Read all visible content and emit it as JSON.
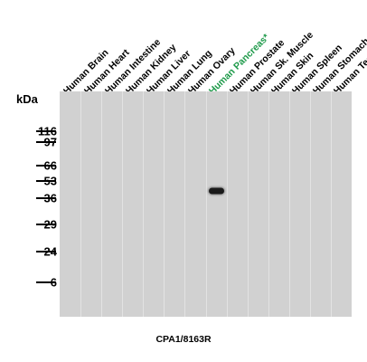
{
  "lanes": [
    {
      "label": "Human Brain",
      "highlight": false
    },
    {
      "label": "Human Heart",
      "highlight": false
    },
    {
      "label": "Human Intestine",
      "highlight": false
    },
    {
      "label": "Human Kidney",
      "highlight": false
    },
    {
      "label": "Human Liver",
      "highlight": false
    },
    {
      "label": "Human Lung",
      "highlight": false
    },
    {
      "label": "Human Ovary",
      "highlight": false
    },
    {
      "label": "Human Pancreas*",
      "highlight": true
    },
    {
      "label": "Human Prostate",
      "highlight": false
    },
    {
      "label": "Human Sk. Muscle",
      "highlight": false
    },
    {
      "label": "Human Skin",
      "highlight": false
    },
    {
      "label": "Human Spleen",
      "highlight": false
    },
    {
      "label": "Human Stomach",
      "highlight": false
    },
    {
      "label": "Human Testis",
      "highlight": false
    }
  ],
  "marker_unit": "kDa",
  "markers": [
    "116",
    "97",
    "66",
    "53",
    "36",
    "29",
    "24",
    "6"
  ],
  "bands": [
    {
      "lane": "Human Pancreas*",
      "kda": 42
    }
  ],
  "antibody_label": "CPA1/8163R",
  "colors": {
    "highlight": "#1e9a4a",
    "membrane": "#d1d1d1",
    "band": "#1a1a1a"
  }
}
